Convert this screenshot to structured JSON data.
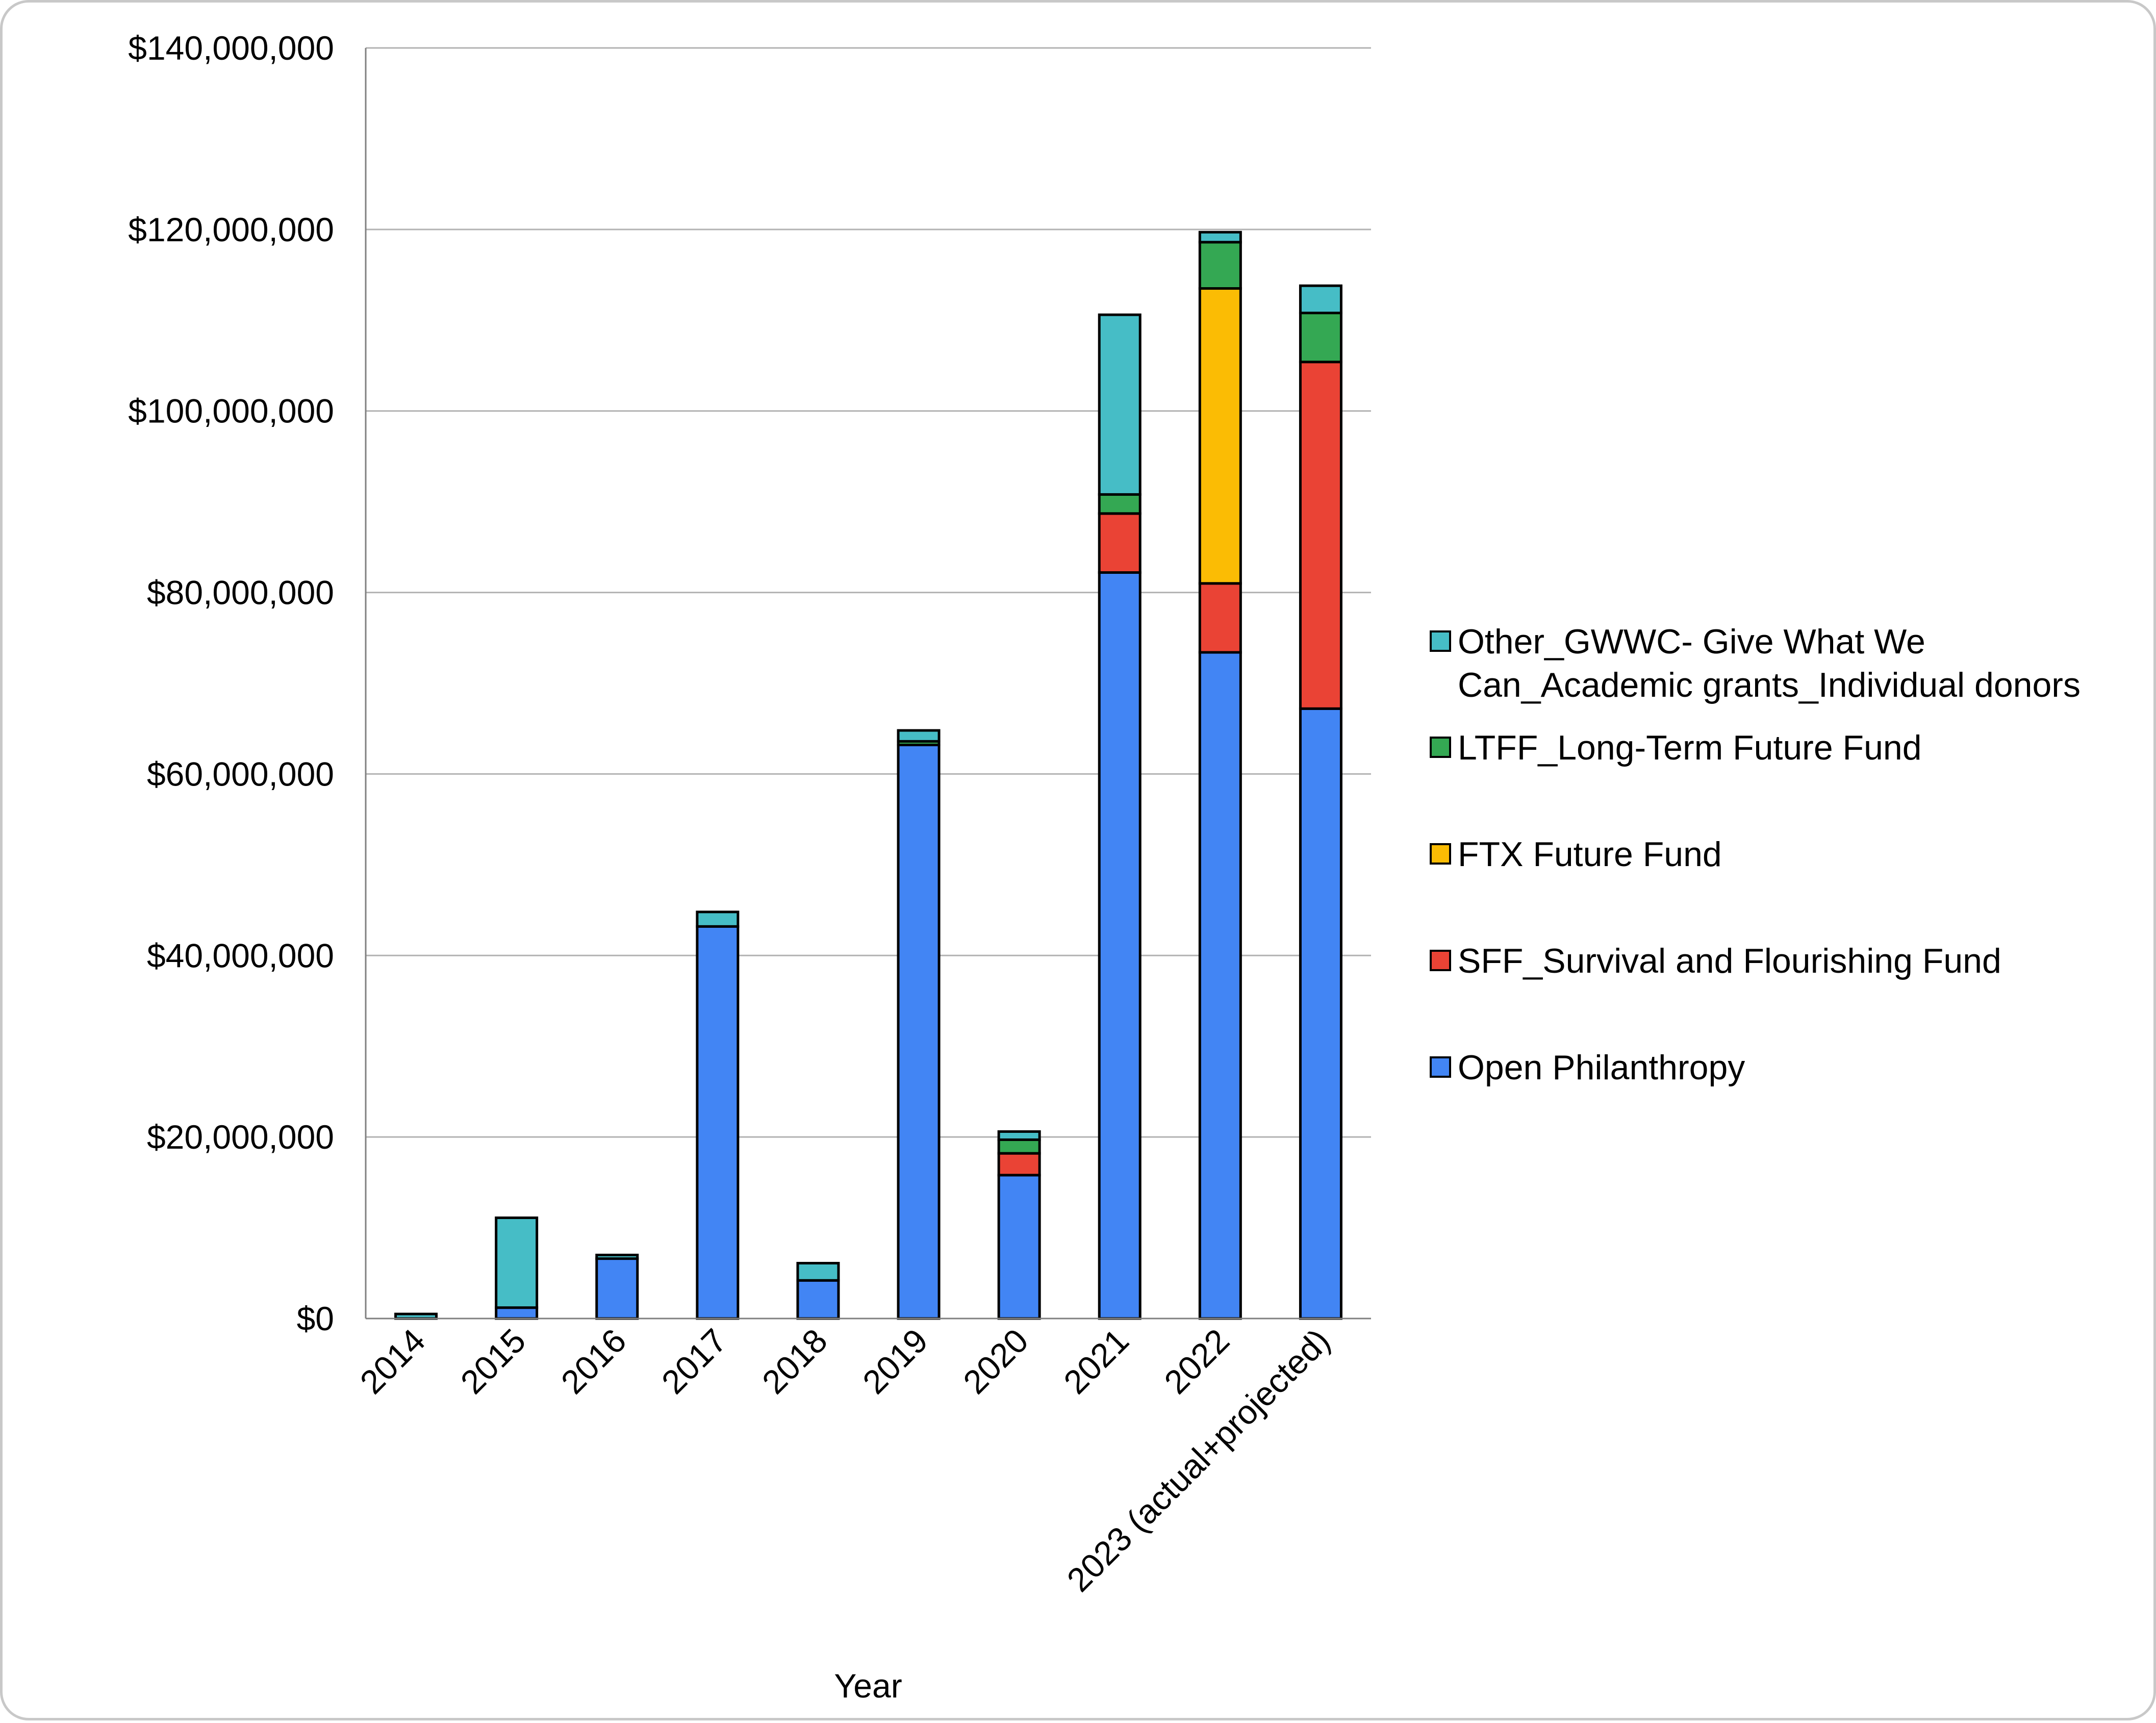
{
  "chart_data": {
    "type": "bar",
    "stacked": true,
    "xlabel": "Year",
    "ylabel": "",
    "ylim": [
      0,
      140000000
    ],
    "yticks": [
      0,
      20000000,
      40000000,
      60000000,
      80000000,
      100000000,
      120000000,
      140000000
    ],
    "ytick_labels": [
      "$0",
      "$20,000,000",
      "$40,000,000",
      "$60,000,000",
      "$80,000,000",
      "$100,000,000",
      "$120,000,000",
      "$140,000,000"
    ],
    "grid": true,
    "legend_position": "right",
    "categories": [
      "2014",
      "2015",
      "2016",
      "2017",
      "2018",
      "2019",
      "2020",
      "2021",
      "2022",
      "2023 (actual+projected)"
    ],
    "series": [
      {
        "name": "Open Philanthropy",
        "color": "#4285f4",
        "values": [
          0,
          1200000,
          6600000,
          43200000,
          4200000,
          63200000,
          15800000,
          82200000,
          73400000,
          67200000
        ]
      },
      {
        "name": "SFF_Survival and Flourishing Fund",
        "color": "#ea4335",
        "values": [
          0,
          0,
          0,
          0,
          0,
          0,
          2400000,
          6500000,
          7600000,
          38200000
        ]
      },
      {
        "name": "FTX Future Fund",
        "color": "#fbbc04",
        "values": [
          0,
          0,
          0,
          0,
          0,
          0,
          0,
          0,
          32500000,
          0
        ]
      },
      {
        "name": "LTFF_Long-Term Future Fund",
        "color": "#34a853",
        "values": [
          0,
          0,
          0,
          0,
          0,
          400000,
          1500000,
          2100000,
          5100000,
          5400000
        ]
      },
      {
        "name": "Other_GWWC- Give What We Can_Academic grants_Individual donors",
        "color": "#46bdc6",
        "values": [
          500000,
          9900000,
          400000,
          1600000,
          1900000,
          1200000,
          900000,
          19800000,
          1100000,
          3000000
        ]
      }
    ],
    "legend_items": [
      {
        "lines": [
          "Other_GWWC- Give What We",
          "Can_Academic grants_Individual donors"
        ],
        "color": "#46bdc6"
      },
      {
        "lines": [
          "LTFF_Long-Term Future Fund"
        ],
        "color": "#34a853"
      },
      {
        "lines": [
          "FTX Future Fund"
        ],
        "color": "#fbbc04"
      },
      {
        "lines": [
          "SFF_Survival and Flourishing Fund"
        ],
        "color": "#ea4335"
      },
      {
        "lines": [
          "Open Philanthropy"
        ],
        "color": "#4285f4"
      }
    ]
  }
}
